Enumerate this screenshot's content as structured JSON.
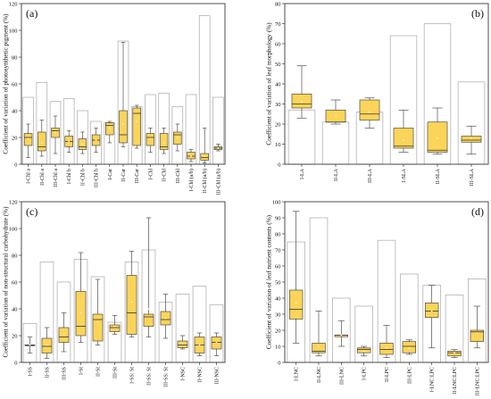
{
  "chart_data": [
    {
      "type": "box",
      "panel": "(a)",
      "ylabel": "Coefficient of variation of photosynthetic pigment (%)",
      "ylim": [
        0,
        120
      ],
      "yticks": [
        0,
        20,
        40,
        60,
        80,
        100,
        120
      ],
      "categories": [
        "I-Chl a",
        "II-Chl a",
        "III-Chl a",
        "I-Chl b",
        "II-Chl b",
        "III-Chl b",
        "I-Car",
        "II-Car",
        "III-Car",
        "I-Chl",
        "II-Chl",
        "III-Chl",
        "I-Chl (a/b)",
        "II-Chl (a/b)",
        "III-Chl (a/b)"
      ],
      "reference": [
        50,
        61,
        47,
        49,
        40,
        32,
        31,
        92,
        43,
        52,
        53,
        43,
        52,
        111,
        50
      ],
      "boxes": [
        {
          "min": 5,
          "q1": 14,
          "median": 20,
          "q3": 23,
          "max": 30,
          "mean": 19
        },
        {
          "min": 6,
          "q1": 10,
          "median": 13,
          "q3": 24,
          "max": 33,
          "mean": 16
        },
        {
          "min": 8,
          "q1": 20,
          "median": 25,
          "q3": 27,
          "max": 36,
          "mean": 24
        },
        {
          "min": 9,
          "q1": 13,
          "median": 17,
          "q3": 21,
          "max": 25,
          "mean": 17
        },
        {
          "min": 8,
          "q1": 11,
          "median": 13,
          "q3": 19,
          "max": 24,
          "mean": 15
        },
        {
          "min": 9,
          "q1": 14,
          "median": 18,
          "q3": 22,
          "max": 27,
          "mean": 18
        },
        {
          "min": 16,
          "q1": 22,
          "median": 29,
          "q3": 31,
          "max": 32,
          "mean": 27
        },
        {
          "min": 13,
          "q1": 16,
          "median": 22,
          "q3": 40,
          "max": 91,
          "mean": 30
        },
        {
          "min": 12,
          "q1": 14,
          "median": 38,
          "q3": 42,
          "max": 44,
          "mean": 32
        },
        {
          "min": 9,
          "q1": 14,
          "median": 20,
          "q3": 23,
          "max": 27,
          "mean": 19
        },
        {
          "min": 8,
          "q1": 11,
          "median": 13,
          "q3": 23,
          "max": 27,
          "mean": 16
        },
        {
          "min": 10,
          "q1": 15,
          "median": 22,
          "q3": 24,
          "max": 30,
          "mean": 20
        },
        {
          "min": 2,
          "q1": 4,
          "median": 6,
          "q3": 9,
          "max": 11,
          "mean": 6
        },
        {
          "min": 1,
          "q1": 3,
          "median": 5,
          "q3": 8,
          "max": 27,
          "mean": 6
        },
        {
          "min": 10,
          "q1": 11,
          "median": 12,
          "q3": 13,
          "max": 15,
          "mean": 12
        }
      ]
    },
    {
      "type": "box",
      "panel": "(b)",
      "ylabel": "Coefficient of variation of leaf morphology (%)",
      "ylim": [
        0,
        80
      ],
      "yticks": [
        0,
        10,
        20,
        30,
        40,
        50,
        60,
        70,
        80
      ],
      "categories": [
        "I-LA",
        "II-LA",
        "III-LA",
        "I-SLA",
        "II-SLA",
        "III-SLA"
      ],
      "reference": [
        27,
        21,
        26,
        64,
        70,
        41
      ],
      "boxes": [
        {
          "min": 23,
          "q1": 28,
          "median": 30,
          "q3": 35,
          "max": 49,
          "mean": 31
        },
        {
          "min": 20,
          "q1": 21,
          "median": 21,
          "q3": 27,
          "max": 32,
          "mean": 24
        },
        {
          "min": 18,
          "q1": 22,
          "median": 25,
          "q3": 32,
          "max": 33,
          "mean": 26
        },
        {
          "min": 6,
          "q1": 8,
          "median": 9,
          "q3": 18,
          "max": 27,
          "mean": 12
        },
        {
          "min": 5,
          "q1": 6,
          "median": 7,
          "q3": 21,
          "max": 28,
          "mean": 13
        },
        {
          "min": 5,
          "q1": 11,
          "median": 12,
          "q3": 14,
          "max": 19,
          "mean": 13
        }
      ]
    },
    {
      "type": "box",
      "panel": "(c)",
      "ylabel": "Coefficient of variation of non-structural carbohydrate (%)",
      "ylim": [
        0,
        120
      ],
      "yticks": [
        0,
        20,
        40,
        60,
        80,
        100,
        120
      ],
      "categories": [
        "I-SS",
        "II-SS",
        "III-SS",
        "I-St",
        "II-St",
        "III-St",
        "I-SS: St",
        "II-SS: St",
        "III-SS: St",
        "I-NSC",
        "II-NSC",
        "III-NSC"
      ],
      "reference": [
        29,
        75,
        60,
        77,
        64,
        30,
        75,
        84,
        45,
        51,
        57,
        43
      ],
      "boxes": [
        {
          "min": 7,
          "q1": 13,
          "median": 13,
          "q3": 13,
          "max": 19,
          "mean": 13
        },
        {
          "min": 3,
          "q1": 7,
          "median": 12,
          "q3": 18,
          "max": 26,
          "mean": 13
        },
        {
          "min": 8,
          "q1": 15,
          "median": 19,
          "q3": 26,
          "max": 37,
          "mean": 21
        },
        {
          "min": 15,
          "q1": 20,
          "median": 27,
          "q3": 53,
          "max": 82,
          "mean": 37
        },
        {
          "min": 13,
          "q1": 16,
          "median": 32,
          "q3": 36,
          "max": 62,
          "mean": 30
        },
        {
          "min": 21,
          "q1": 23,
          "median": 26,
          "q3": 28,
          "max": 35,
          "mean": 27
        },
        {
          "min": 19,
          "q1": 21,
          "median": 37,
          "q3": 65,
          "max": 83,
          "mean": 45
        },
        {
          "min": 19,
          "q1": 27,
          "median": 34,
          "q3": 36,
          "max": 108,
          "mean": 40
        },
        {
          "min": 18,
          "q1": 28,
          "median": 32,
          "q3": 38,
          "max": 51,
          "mean": 33
        },
        {
          "min": 10,
          "q1": 11,
          "median": 13,
          "q3": 16,
          "max": 20,
          "mean": 14
        },
        {
          "min": 5,
          "q1": 7,
          "median": 13,
          "q3": 19,
          "max": 22,
          "mean": 13
        },
        {
          "min": 5,
          "q1": 10,
          "median": 15,
          "q3": 19,
          "max": 22,
          "mean": 15
        }
      ]
    },
    {
      "type": "box",
      "panel": "(d)",
      "ylabel": "Coefficient of variation of leaf nutrient contents (%)",
      "ylim": [
        0,
        100
      ],
      "yticks": [
        0,
        10,
        20,
        30,
        40,
        50,
        60,
        70,
        80,
        90,
        100
      ],
      "categories": [
        "I-LNC",
        "II-LNC",
        "III-LNC",
        "I-LPC",
        "II-LPC",
        "III-LPC",
        "I-LNC:LPC",
        "II-LNC:LPC",
        "III-LNC:LPC"
      ],
      "reference": [
        75,
        90,
        40,
        35,
        76,
        55,
        48,
        42,
        52
      ],
      "boxes": [
        {
          "min": 12,
          "q1": 27,
          "median": 33,
          "q3": 45,
          "max": 94,
          "mean": 37
        },
        {
          "min": 4,
          "q1": 6,
          "median": 7,
          "q3": 12,
          "max": 32,
          "mean": 10
        },
        {
          "min": 10,
          "q1": 16,
          "median": 17,
          "q3": 17,
          "max": 26,
          "mean": 17
        },
        {
          "min": 4,
          "q1": 6,
          "median": 8,
          "q3": 9,
          "max": 10,
          "mean": 7
        },
        {
          "min": 3,
          "q1": 5,
          "median": 8,
          "q3": 12,
          "max": 23,
          "mean": 9
        },
        {
          "min": 5,
          "q1": 6,
          "median": 10,
          "q3": 13,
          "max": 14,
          "mean": 9
        },
        {
          "min": 9,
          "q1": 28,
          "median": 32,
          "q3": 37,
          "max": 48,
          "mean": 32
        },
        {
          "min": 3,
          "q1": 4,
          "median": 6,
          "q3": 7,
          "max": 8,
          "mean": 6
        },
        {
          "min": 9,
          "q1": 13,
          "median": 19,
          "q3": 20,
          "max": 35,
          "mean": 18
        }
      ]
    }
  ],
  "colors": {
    "box_fill": "#fbd45a",
    "reference_bar": "#b3b3b3",
    "mean_marker": "#fff6c8"
  }
}
